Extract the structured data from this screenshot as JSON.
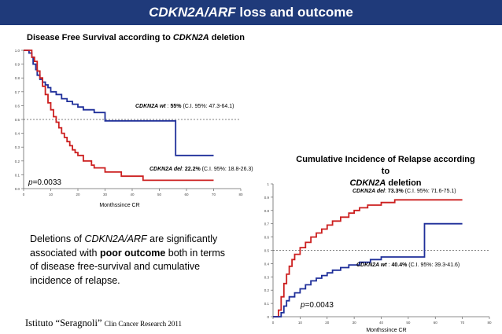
{
  "header": {
    "gene": "CDKN2A/ARF",
    "rest": " loss and outcome"
  },
  "summary": {
    "p1": "Deletions of ",
    "gene": "CDKN2A/ARF",
    "p2": " are significantly associated with ",
    "bold": "poor outcome",
    "p3": " both in terms of disease free-survival and cumulative incidence of relapse."
  },
  "footer": {
    "main": "Istituto “Seragnoli”",
    "cite": "Clin Cancer Research 2011"
  },
  "colors": {
    "header_bg": "#1F3A7A",
    "wt": "#1F2F9A",
    "del": "#CC1F1F",
    "ref": "#555555"
  },
  "chart_data": [
    {
      "type": "line",
      "title_pre": "Disease Free Survival according to ",
      "title_gene": "CDKN2A",
      "title_post": " deletion",
      "xlabel": "Monthssince CR",
      "ylabel": "",
      "xlim": [
        0,
        80
      ],
      "ylim": [
        0,
        1.0
      ],
      "xticks": [
        "0",
        "10",
        "20",
        "30",
        "40",
        "50",
        "60",
        "70",
        "80"
      ],
      "yticks": [
        "0.0",
        "0.1",
        "0.2",
        "0.3",
        "0.4",
        "0.5",
        "0.6",
        "0.7",
        "0.8",
        "0.9",
        "1.0"
      ],
      "reference_y": 0.5,
      "p_value": "p=0.0033",
      "series": [
        {
          "name": "CDKN2A wt",
          "color": "#1F2F9A",
          "label_gene": "CDKN2A wt",
          "label_sep": " : ",
          "label_value": "55%",
          "label_ci": " (C.I. 95%: 47.3-64.1)",
          "x": [
            0,
            2,
            3,
            3.5,
            4.5,
            5,
            6,
            7,
            8,
            9,
            10,
            12,
            14,
            16,
            18,
            20,
            22,
            26,
            30,
            38,
            56,
            56,
            70
          ],
          "y": [
            1.0,
            0.98,
            0.95,
            0.9,
            0.86,
            0.82,
            0.79,
            0.77,
            0.75,
            0.73,
            0.7,
            0.68,
            0.65,
            0.63,
            0.61,
            0.59,
            0.57,
            0.55,
            0.49,
            0.49,
            0.49,
            0.24,
            0.24
          ]
        },
        {
          "name": "CDKN2A del",
          "color": "#CC1F1F",
          "label_gene": "CDKN2A del",
          "label_sep": ": ",
          "label_value": "22.2%",
          "label_ci": " (C.I. 95%: 18.8-26.3)",
          "x": [
            0,
            3,
            4,
            5,
            6,
            7,
            8,
            9,
            10,
            11,
            12,
            13,
            14,
            15,
            16,
            17,
            18,
            19,
            20,
            22,
            25,
            26,
            30,
            36,
            44,
            70
          ],
          "y": [
            1.0,
            0.95,
            0.92,
            0.85,
            0.8,
            0.74,
            0.68,
            0.62,
            0.57,
            0.52,
            0.48,
            0.44,
            0.4,
            0.37,
            0.34,
            0.31,
            0.28,
            0.26,
            0.24,
            0.2,
            0.17,
            0.15,
            0.12,
            0.09,
            0.06,
            0.06
          ]
        }
      ]
    },
    {
      "type": "line",
      "title_l1": "Cumulative Incidence of Relapse according to",
      "title_gene": "CDKN2A",
      "title_post": " deletion",
      "xlabel": "Monthssince CR",
      "ylabel": "",
      "xlim": [
        0,
        80
      ],
      "ylim": [
        0,
        1.0
      ],
      "xticks": [
        "0",
        "10",
        "20",
        "30",
        "40",
        "50",
        "60",
        "70",
        "80"
      ],
      "yticks": [
        "0",
        "0.1",
        "0.2",
        "0.3",
        "0.4",
        "0.5",
        "0.6",
        "0.7",
        "0.8",
        "0.9",
        "1"
      ],
      "reference_y": 0.5,
      "p_value": "p=0.0043",
      "series": [
        {
          "name": "CDKN2A del",
          "color": "#CC1F1F",
          "label_gene": "CDKN2A del",
          "label_sep": ": ",
          "label_value": "73.3%",
          "label_ci": " (C.I. 95%: 71.6-75.1)",
          "x": [
            0,
            2,
            3,
            4,
            5,
            6,
            7,
            8,
            10,
            12,
            14,
            16,
            18,
            20,
            22,
            25,
            28,
            30,
            32,
            35,
            40,
            45,
            70
          ],
          "y": [
            0,
            0.05,
            0.15,
            0.25,
            0.32,
            0.38,
            0.43,
            0.47,
            0.52,
            0.56,
            0.6,
            0.63,
            0.66,
            0.69,
            0.72,
            0.75,
            0.78,
            0.8,
            0.82,
            0.84,
            0.86,
            0.88,
            0.88
          ]
        },
        {
          "name": "CDKN2A wt",
          "color": "#1F2F9A",
          "label_gene": "CDKN2A wt",
          "label_sep": " : ",
          "label_value": "40.4%",
          "label_ci": " (C.I. 95%: 39.3-41.6)",
          "x": [
            0,
            3,
            4,
            5,
            6,
            8,
            10,
            12,
            14,
            16,
            18,
            20,
            22,
            25,
            28,
            32,
            36,
            40,
            56,
            56,
            70
          ],
          "y": [
            0,
            0.03,
            0.08,
            0.12,
            0.15,
            0.18,
            0.21,
            0.24,
            0.27,
            0.29,
            0.31,
            0.33,
            0.35,
            0.37,
            0.39,
            0.41,
            0.43,
            0.45,
            0.45,
            0.7,
            0.7
          ]
        }
      ]
    }
  ]
}
